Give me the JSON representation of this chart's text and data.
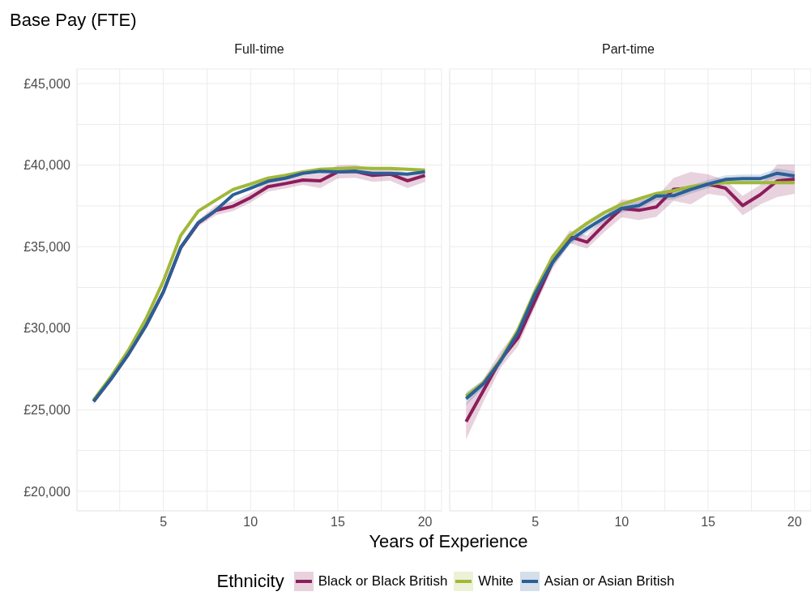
{
  "chart_data": [
    {
      "type": "line",
      "title": "Base Pay (FTE)",
      "subtitle": "Full-time",
      "xlabel": "Years of Experience",
      "legend_title": "Ethnicity",
      "legend": "bottom",
      "grid": true,
      "line_style": "solid",
      "marker": "none",
      "x": [
        1,
        2,
        3,
        4,
        5,
        6,
        7,
        8,
        9,
        10,
        11,
        12,
        13,
        14,
        15,
        16,
        17,
        18,
        19,
        20
      ],
      "xlim": [
        0.05,
        20.95
      ],
      "xticks": [
        {
          "value": 2.5,
          "label": null
        },
        5,
        {
          "value": 7.5,
          "label": null
        },
        10,
        {
          "value": 12.5,
          "label": null
        },
        15,
        {
          "value": 17.5,
          "label": null
        },
        20
      ],
      "ylim": [
        18800,
        45900
      ],
      "yticks": [
        {
          "value": 20000,
          "label": "£20,000"
        },
        {
          "value": 22500,
          "label": null
        },
        {
          "value": 25000,
          "label": "£25,000"
        },
        {
          "value": 27500,
          "label": null
        },
        {
          "value": 30000,
          "label": "£30,000"
        },
        {
          "value": 32500,
          "label": null
        },
        {
          "value": 35000,
          "label": "£35,000"
        },
        {
          "value": 37500,
          "label": null
        },
        {
          "value": 40000,
          "label": "£40,000"
        },
        {
          "value": 42500,
          "label": null
        },
        {
          "value": 45000,
          "label": "£45,000"
        }
      ],
      "series": [
        {
          "name": "Black or Black British",
          "color": "#8c1d5b",
          "values": [
            25510,
            26890,
            28410,
            30150,
            32220,
            34950,
            36440,
            37220,
            37480,
            38010,
            38680,
            38870,
            39090,
            39040,
            39590,
            39620,
            39370,
            39450,
            39040,
            39370
          ],
          "lower": [
            25310,
            26685,
            28210,
            29950,
            32020,
            34750,
            36240,
            36920,
            37180,
            37710,
            38380,
            38570,
            38790,
            38590,
            39190,
            39220,
            38970,
            39050,
            38590,
            38970
          ],
          "upper": [
            25710,
            27085,
            28610,
            30350,
            32420,
            35150,
            36640,
            37520,
            37780,
            38310,
            38980,
            39170,
            39390,
            39490,
            39990,
            40020,
            39770,
            39850,
            39490,
            39770
          ]
        },
        {
          "name": "White",
          "color": "#a0b83a",
          "values": [
            25590,
            27030,
            28650,
            30560,
            32880,
            35690,
            37180,
            37850,
            38510,
            38840,
            39200,
            39370,
            39590,
            39750,
            39780,
            39830,
            39800,
            39800,
            39750,
            39700
          ]
        },
        {
          "name": "Asian or Asian British",
          "color": "#2a5f98",
          "values": [
            25510,
            26890,
            28410,
            30150,
            32220,
            34950,
            36470,
            37220,
            38180,
            38590,
            39010,
            39200,
            39500,
            39620,
            39590,
            39620,
            39500,
            39500,
            39450,
            39590
          ]
        }
      ]
    },
    {
      "type": "line",
      "title": "Part-time",
      "grid": true,
      "line_style": "solid",
      "marker": "none",
      "tick_labels": "x",
      "x": [
        1,
        2,
        3,
        4,
        5,
        6,
        7,
        8,
        9,
        10,
        11,
        12,
        13,
        14,
        15,
        16,
        17,
        18,
        19,
        20
      ],
      "xlim": [
        0.05,
        20.95
      ],
      "xticks": [
        {
          "value": 2.5,
          "label": null
        },
        5,
        {
          "value": 7.5,
          "label": null
        },
        10,
        {
          "value": 12.5,
          "label": null
        },
        15,
        {
          "value": 17.5,
          "label": null
        },
        20
      ],
      "ylim": [
        18800,
        45900
      ],
      "yticks": [
        {
          "value": 20000,
          "label": null
        },
        {
          "value": 22500,
          "label": null
        },
        {
          "value": 25000,
          "label": null
        },
        {
          "value": 27500,
          "label": null
        },
        {
          "value": 30000,
          "label": null
        },
        {
          "value": 32500,
          "label": null
        },
        {
          "value": 35000,
          "label": null
        },
        {
          "value": 37500,
          "label": null
        },
        {
          "value": 40000,
          "label": null
        },
        {
          "value": 42500,
          "label": null
        },
        {
          "value": 45000,
          "label": null
        }
      ],
      "series": [
        {
          "color": "#8c1d5b",
          "values": [
            24270,
            26170,
            28080,
            29400,
            31720,
            34040,
            35610,
            35280,
            36360,
            37350,
            37230,
            37430,
            38510,
            38590,
            38840,
            38590,
            37520,
            38180,
            39040,
            39140
          ],
          "lower": [
            23170,
            25470,
            27580,
            28900,
            31320,
            33640,
            35210,
            34880,
            35910,
            36800,
            36630,
            36830,
            37810,
            37590,
            38240,
            38090,
            36920,
            37580,
            38040,
            38240
          ],
          "upper": [
            25370,
            26870,
            28580,
            29900,
            32120,
            34440,
            36010,
            35680,
            36810,
            37900,
            37830,
            38030,
            39210,
            39590,
            39440,
            39090,
            38120,
            38780,
            40040,
            40040
          ]
        },
        {
          "color": "#a0b83a",
          "values": [
            25840,
            26670,
            28080,
            29900,
            32300,
            34370,
            35690,
            36440,
            37100,
            37600,
            37930,
            38260,
            38430,
            38680,
            38840,
            38920,
            38920,
            38920,
            38920,
            38920
          ]
        },
        {
          "color": "#2a5f98",
          "values": [
            25680,
            26590,
            28000,
            29730,
            32130,
            34040,
            35360,
            36110,
            36770,
            37350,
            37520,
            38100,
            38130,
            38510,
            38840,
            39120,
            39170,
            39170,
            39500,
            39340
          ],
          "lower": [
            25280,
            26340,
            27750,
            29480,
            31880,
            33790,
            35110,
            35860,
            36520,
            37100,
            37270,
            37850,
            37880,
            38260,
            38590,
            38870,
            38920,
            38920,
            39200,
            39040
          ],
          "upper": [
            26080,
            26840,
            28250,
            29980,
            32380,
            34290,
            35610,
            36360,
            37020,
            37600,
            37770,
            38350,
            38380,
            38760,
            39090,
            39370,
            39420,
            39420,
            39800,
            39640
          ]
        }
      ]
    }
  ]
}
